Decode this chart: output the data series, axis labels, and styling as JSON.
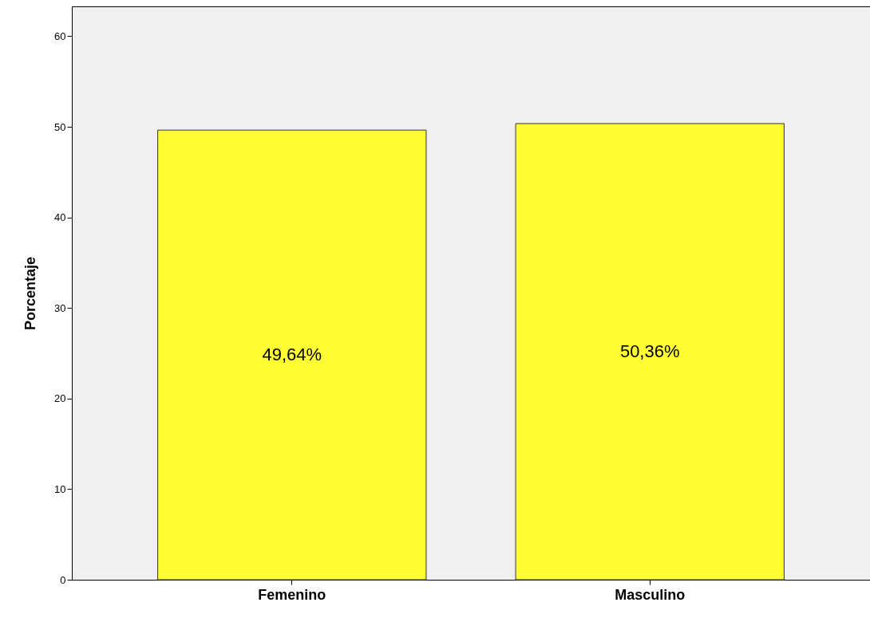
{
  "chart_data": {
    "type": "bar",
    "ylabel": "Porcentaje",
    "categories": [
      "Femenino",
      "Masculino"
    ],
    "values": [
      49.64,
      50.36
    ],
    "value_labels": [
      "49,64%",
      "50,36%"
    ],
    "color": "#ffff33",
    "ylim": [
      0,
      63.3
    ],
    "yticks": [
      0,
      10,
      20,
      30,
      40,
      50,
      60
    ],
    "grid": false
  }
}
